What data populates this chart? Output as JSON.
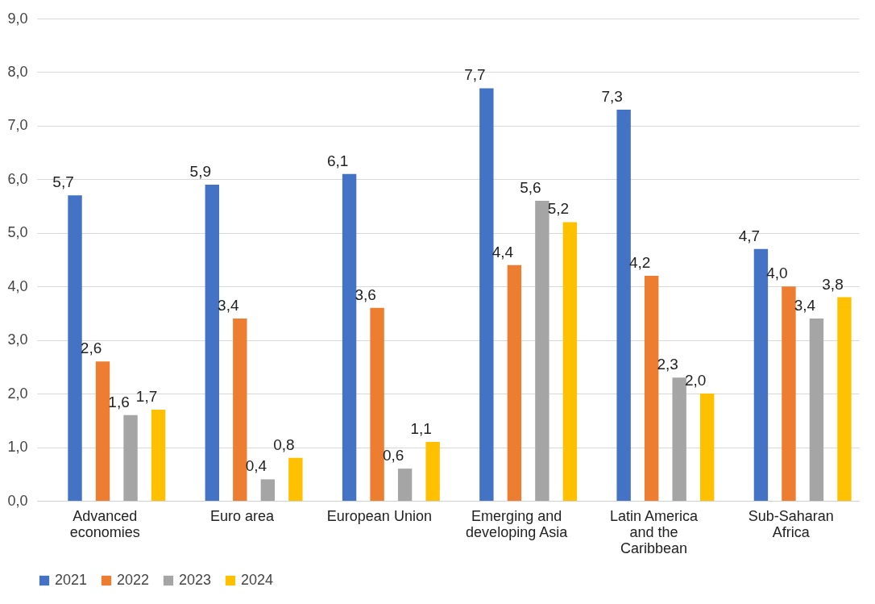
{
  "chart_data": {
    "type": "bar",
    "categories": [
      "Advanced economies",
      "Euro area",
      "European Union",
      "Emerging and developing Asia",
      "Latin America and the Caribbean",
      "Sub-Saharan Africa"
    ],
    "series": [
      {
        "name": "2021",
        "color": "#4472c4",
        "values": [
          5.7,
          5.9,
          6.1,
          7.7,
          7.3,
          4.7
        ],
        "value_labels": [
          "5,7",
          "5,9",
          "6,1",
          "7,7",
          "7,3",
          "4,7"
        ]
      },
      {
        "name": "2022",
        "color": "#ed7d31",
        "values": [
          2.6,
          3.4,
          3.6,
          4.4,
          4.2,
          4.0
        ],
        "value_labels": [
          "2,6",
          "3,4",
          "3,6",
          "4,4",
          "4,2",
          "4,0"
        ]
      },
      {
        "name": "2023",
        "color": "#a5a5a5",
        "values": [
          1.6,
          0.4,
          0.6,
          5.6,
          2.3,
          3.4
        ],
        "value_labels": [
          "1,6",
          "0,4",
          "0,6",
          "5,6",
          "2,3",
          "3,4"
        ]
      },
      {
        "name": "2024",
        "color": "#ffc000",
        "values": [
          1.7,
          0.8,
          1.1,
          5.2,
          2.0,
          3.8
        ],
        "value_labels": [
          "1,7",
          "0,8",
          "1,1",
          "5,2",
          "2,0",
          "3,8"
        ]
      }
    ],
    "ylim": [
      0,
      9
    ],
    "yticks": [
      {
        "value": 0,
        "label": "0,0"
      },
      {
        "value": 1,
        "label": "1,0"
      },
      {
        "value": 2,
        "label": "2,0"
      },
      {
        "value": 3,
        "label": "3,0"
      },
      {
        "value": 4,
        "label": "4,0"
      },
      {
        "value": 5,
        "label": "5,0"
      },
      {
        "value": 6,
        "label": "6,0"
      },
      {
        "value": 7,
        "label": "7,0"
      },
      {
        "value": 8,
        "label": "8,0"
      },
      {
        "value": 9,
        "label": "9,0"
      }
    ],
    "grid": "y",
    "legend": "bottom"
  }
}
